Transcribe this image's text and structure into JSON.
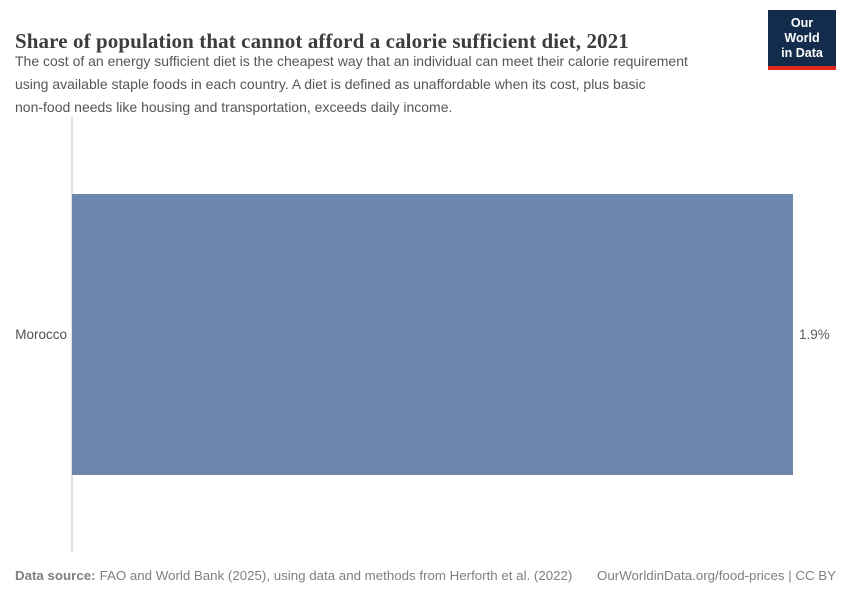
{
  "header": {
    "title": "Share of population that cannot afford a calorie sufficient diet, 2021",
    "subtitle_lines": [
      "The cost of an energy sufficient diet is the cheapest way that an individual can meet their calorie requirement",
      "using available staple foods in each country. A diet is defined as unaffordable when its cost, plus basic",
      "non-food needs like housing and transportation, exceeds daily income."
    ],
    "logo": {
      "line1": "Our World",
      "line2": "in Data"
    }
  },
  "chart_data": {
    "type": "bar",
    "orientation": "horizontal",
    "title": "Share of population that cannot afford a calorie sufficient diet, 2021",
    "categories": [
      "Morocco"
    ],
    "values": [
      1.9
    ],
    "value_labels": [
      "1.9%"
    ],
    "unit": "%",
    "xlim": [
      0,
      1.9
    ],
    "grid": false,
    "legend": "none",
    "bar_color": "#6d87ac"
  },
  "footer": {
    "source_label": "Data source:",
    "source_text": "FAO and World Bank (2025), using data and methods from Herforth et al. (2022)",
    "credit": "OurWorldinData.org/food-prices | CC BY"
  },
  "colors": {
    "bar": "#6d87ac",
    "logo_background": "#142c4c",
    "logo_accent": "#e0261c",
    "axis_line": "#e4e4e4",
    "title_text": "#3d3d3d",
    "subtitle_text": "#555555",
    "footer_text": "#808080"
  }
}
